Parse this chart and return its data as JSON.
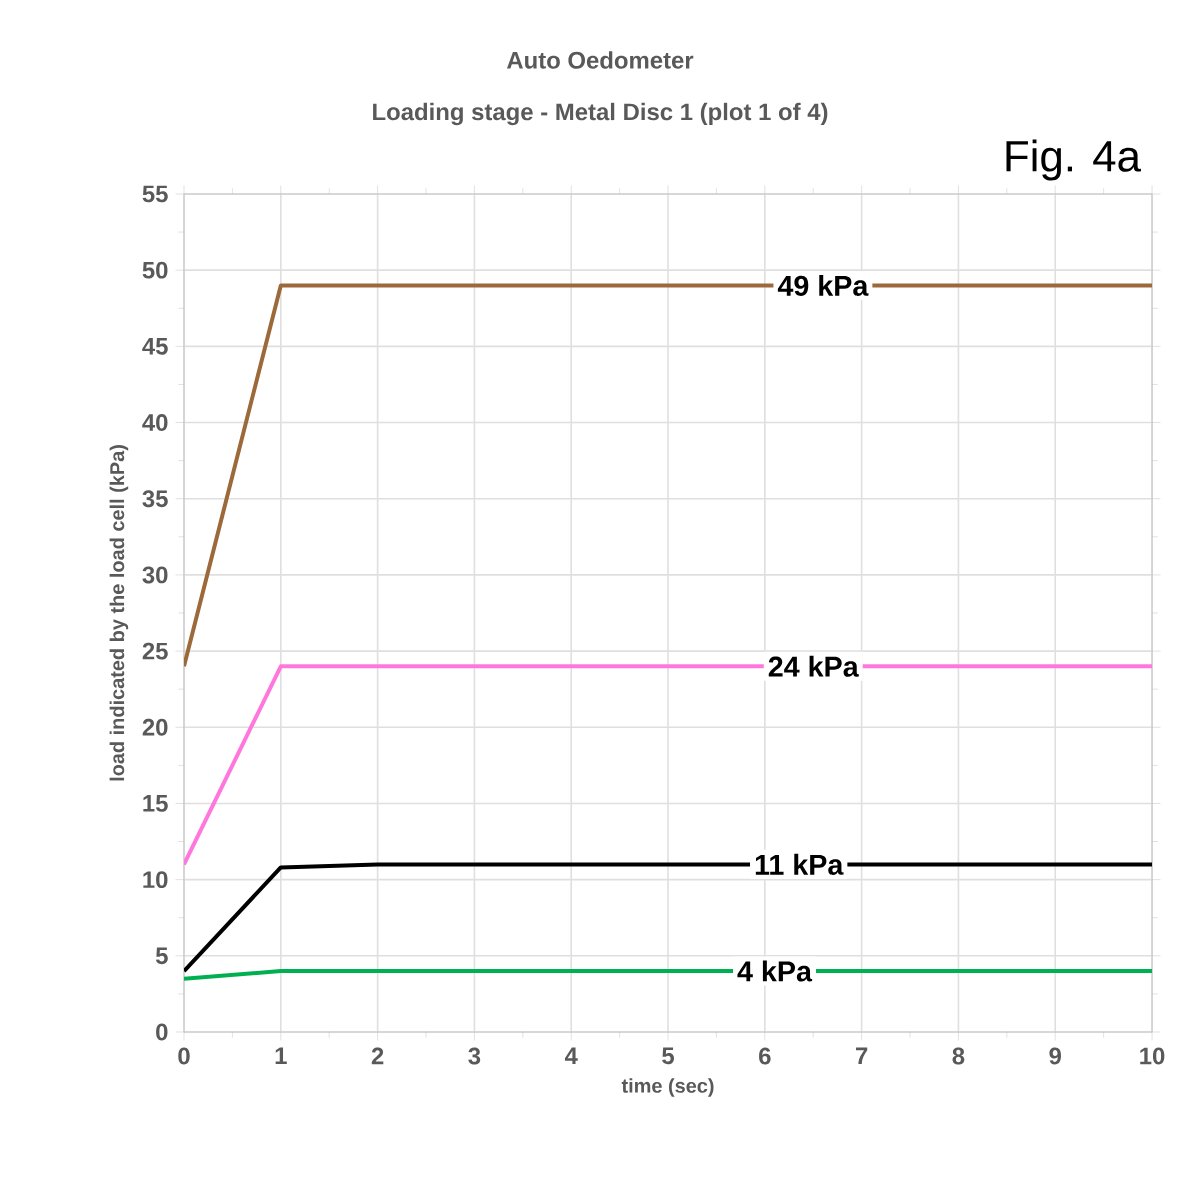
{
  "chart_data": {
    "type": "line",
    "title": "Auto Oedometer",
    "subtitle": "Loading stage - Metal Disc 1  (plot 1 of 4)",
    "xlabel": "time (sec)",
    "ylabel": "load indicated by the load cell (kPa)",
    "annotations": [
      "Fig. 4a"
    ],
    "xlim": [
      0,
      10
    ],
    "ylim": [
      0,
      55
    ],
    "xticks": [
      0,
      1,
      2,
      3,
      4,
      5,
      6,
      7,
      8,
      9,
      10
    ],
    "yticks": [
      0,
      5,
      10,
      15,
      20,
      25,
      30,
      35,
      40,
      45,
      50,
      55
    ],
    "grid": true,
    "marker": "none",
    "line_style": "solid",
    "series": [
      {
        "name": "49 kPa",
        "color": "#9c6a3a",
        "x": [
          0,
          1,
          10
        ],
        "values": [
          24,
          49,
          49
        ]
      },
      {
        "name": "24 kPa",
        "color": "#ff77dd",
        "x": [
          0,
          1,
          10
        ],
        "values": [
          11,
          24,
          24
        ]
      },
      {
        "name": "11 kPa",
        "color": "#000000",
        "x": [
          0,
          1,
          2,
          10
        ],
        "values": [
          4,
          10.8,
          11,
          11
        ]
      },
      {
        "name": "4 kPa",
        "color": "#00b050",
        "x": [
          0,
          1,
          10
        ],
        "values": [
          3.5,
          4,
          4
        ]
      }
    ]
  }
}
